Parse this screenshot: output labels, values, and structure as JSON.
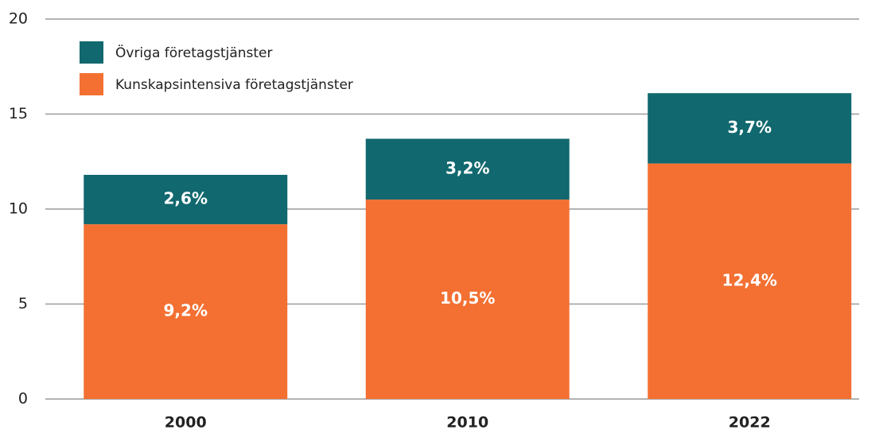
{
  "chart_data": {
    "type": "stacked_bar",
    "categories": [
      "2000",
      "2010",
      "2022"
    ],
    "series": [
      {
        "name": "Kunskapsintensiva företagstjänster",
        "color": "#f37032",
        "values": [
          9.2,
          10.5,
          12.4
        ],
        "value_labels": [
          "9,2%",
          "10,5%",
          "12,4%"
        ]
      },
      {
        "name": "Övriga företagstjänster",
        "color": "#11686e",
        "values": [
          2.6,
          3.2,
          3.7
        ],
        "value_labels": [
          "2,6%",
          "3,2%",
          "3,7%"
        ]
      }
    ],
    "ylim": [
      0,
      20
    ],
    "yticks": [
      0,
      5,
      10,
      15,
      20
    ],
    "grid": true,
    "legend": "upper left"
  }
}
